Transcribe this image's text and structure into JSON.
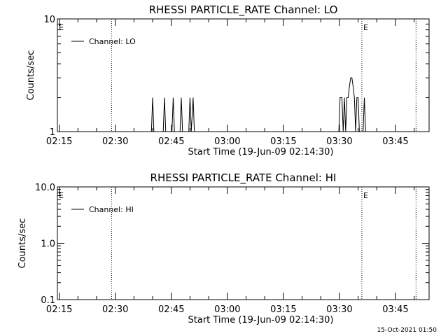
{
  "footer": {
    "timestamp": "15-Oct-2021 01:50"
  },
  "chart_data": [
    {
      "type": "line",
      "title": "RHESSI PARTICLE_RATE Channel: LO",
      "xlabel": "Start Time (19-Jun-09 02:14:30)",
      "ylabel": "Counts/sec",
      "yscale": "log",
      "ylim": [
        1,
        10
      ],
      "yticks": [
        {
          "value": 1,
          "label": "1"
        },
        {
          "value": 10,
          "label": "10"
        }
      ],
      "xlim": [
        "02:14:30",
        "03:54:00"
      ],
      "xticks": [
        "02:15",
        "02:30",
        "02:45",
        "03:00",
        "03:15",
        "03:30",
        "03:45"
      ],
      "vlines": [
        "02:29:00",
        "03:36:00",
        "03:50:30"
      ],
      "markers": [
        {
          "x": "02:14:30",
          "label": "E"
        },
        {
          "x": "03:36:00",
          "label": "E"
        }
      ],
      "legend_position": "top-left",
      "series": [
        {
          "name": "Channel: LO",
          "points": [
            [
              "02:14:30",
              1
            ],
            [
              "02:39:40",
              1
            ],
            [
              "02:40:00",
              2
            ],
            [
              "02:40:20",
              1
            ],
            [
              "02:42:50",
              1
            ],
            [
              "02:43:10",
              2
            ],
            [
              "02:43:30",
              1
            ],
            [
              "02:45:10",
              1
            ],
            [
              "02:45:30",
              2
            ],
            [
              "02:45:50",
              1
            ],
            [
              "02:47:20",
              1
            ],
            [
              "02:47:40",
              2
            ],
            [
              "02:48:00",
              1
            ],
            [
              "02:49:40",
              1
            ],
            [
              "02:50:00",
              2
            ],
            [
              "02:50:20",
              1
            ],
            [
              "02:50:50",
              2
            ],
            [
              "02:51:10",
              1
            ],
            [
              "03:29:50",
              1
            ],
            [
              "03:30:10",
              2
            ],
            [
              "03:30:40",
              2
            ],
            [
              "03:31:00",
              1
            ],
            [
              "03:31:20",
              2
            ],
            [
              "03:31:40",
              1
            ],
            [
              "03:32:00",
              2
            ],
            [
              "03:32:20",
              2
            ],
            [
              "03:32:40",
              2.5
            ],
            [
              "03:33:00",
              3
            ],
            [
              "03:33:20",
              3
            ],
            [
              "03:33:40",
              2.5
            ],
            [
              "03:34:00",
              2
            ],
            [
              "03:34:20",
              1
            ],
            [
              "03:34:40",
              2
            ],
            [
              "03:35:00",
              2
            ],
            [
              "03:35:20",
              1
            ],
            [
              "03:36:20",
              1
            ],
            [
              "03:36:40",
              2
            ],
            [
              "03:37:00",
              1
            ],
            [
              "03:54:00",
              1
            ]
          ]
        }
      ]
    },
    {
      "type": "line",
      "title": "RHESSI PARTICLE_RATE Channel: HI",
      "xlabel": "Start Time (19-Jun-09 02:14:30)",
      "ylabel": "Counts/sec",
      "yscale": "log",
      "ylim": [
        0.1,
        10
      ],
      "yticks": [
        {
          "value": 0.1,
          "label": "0.1"
        },
        {
          "value": 1,
          "label": "1.0"
        },
        {
          "value": 10,
          "label": "10.0"
        }
      ],
      "xlim": [
        "02:14:30",
        "03:54:00"
      ],
      "xticks": [
        "02:15",
        "02:30",
        "02:45",
        "03:00",
        "03:15",
        "03:30",
        "03:45"
      ],
      "vlines": [
        "02:29:00",
        "03:36:00",
        "03:50:30"
      ],
      "markers": [
        {
          "x": "02:14:30",
          "label": "E"
        },
        {
          "x": "03:36:00",
          "label": "E"
        }
      ],
      "legend_position": "top-left",
      "series": [
        {
          "name": "Channel: HI",
          "points": []
        }
      ]
    }
  ]
}
